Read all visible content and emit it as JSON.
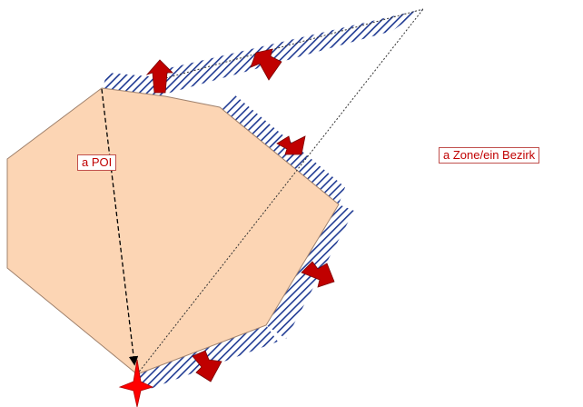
{
  "labels": {
    "poi": "a POI",
    "zone": "a Zone/ein Bezirk"
  },
  "colors": {
    "polygon_fill": "#fcd5b4",
    "polygon_stroke": "#a0826d",
    "hatch": "#1f3a93",
    "arrow": "#c00000",
    "marker": "#ff0000",
    "label_border": "#c0504d",
    "label_text": "#c00000"
  },
  "icons": {
    "poi_marker": "red-four-point-star-icon"
  }
}
